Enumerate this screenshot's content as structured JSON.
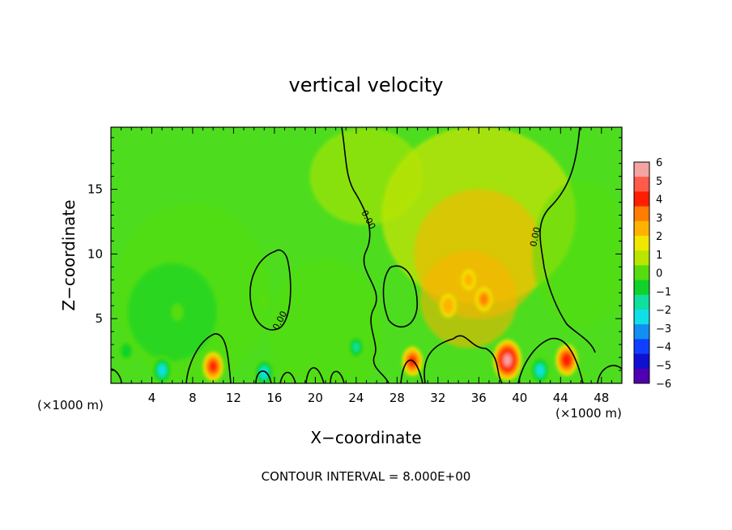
{
  "chart_data": {
    "type": "heatmap",
    "title": "vertical velocity",
    "xlabel": "X−coordinate",
    "ylabel": "Z−coordinate",
    "x_unit_left": "(×1000 m)",
    "x_unit_right": "(×1000 m)",
    "xlim": [
      0,
      50
    ],
    "ylim": [
      0,
      19.8
    ],
    "x_ticks": [
      4,
      8,
      12,
      16,
      20,
      24,
      28,
      32,
      36,
      40,
      44,
      48
    ],
    "y_ticks": [
      5,
      10,
      15
    ],
    "zero_contour_label": "0.00",
    "footer": "CONTOUR INTERVAL = 8.000E+00",
    "colorbar": {
      "levels": [
        6,
        5,
        4,
        3,
        2,
        1,
        0,
        -1,
        -2,
        -3,
        -4,
        -5,
        -6
      ],
      "colors": [
        "#f6a3a3",
        "#ff5a4a",
        "#ff1f00",
        "#ff7d00",
        "#ffb300",
        "#f0e600",
        "#b9e600",
        "#55dd10",
        "#10d22a",
        "#10dfa0",
        "#10dfe8",
        "#1090f0",
        "#1040ff",
        "#1010d0",
        "#5000b0"
      ]
    },
    "features": [
      {
        "x": 38.8,
        "z": 1.8,
        "value": 6.5
      },
      {
        "x": 44.6,
        "z": 1.8,
        "value": 4.5
      },
      {
        "x": 10.0,
        "z": 1.3,
        "value": 4.0
      },
      {
        "x": 29.5,
        "z": 1.7,
        "value": 4.0
      },
      {
        "x": 36.5,
        "z": 6.5,
        "value": 3.0
      },
      {
        "x": 33.0,
        "z": 6.0,
        "value": 2.8
      },
      {
        "x": 35.0,
        "z": 8.0,
        "value": 2.2
      },
      {
        "x": 5.0,
        "z": 1.0,
        "value": -4.0
      },
      {
        "x": 15.0,
        "z": 0.8,
        "value": -4.0
      },
      {
        "x": 42.0,
        "z": 1.0,
        "value": -4.0
      },
      {
        "x": 24.0,
        "z": 2.8,
        "value": -3.0
      },
      {
        "x": 1.5,
        "z": 2.5,
        "value": -2.5
      },
      {
        "x": 6.5,
        "z": 5.5,
        "value": -1.6
      },
      {
        "x": 15.0,
        "z": 6.5,
        "value": -1.0
      }
    ]
  }
}
